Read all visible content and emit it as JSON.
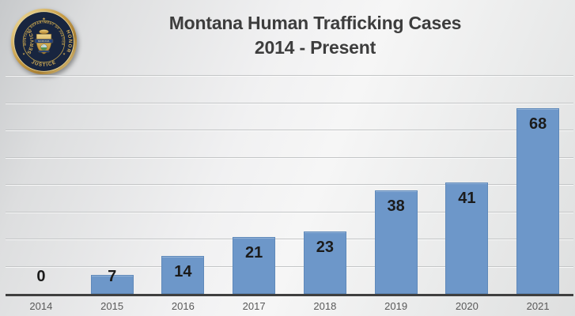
{
  "logo": {
    "ring_text": "MONTANA DEPARTMENT OF JUSTICE",
    "word_left": "SERVICE",
    "word_right": "HONOR",
    "word_bottom": "JUSTICE",
    "badge_banner": "MONTANA",
    "star": "★"
  },
  "title": {
    "line1": "Montana Human Trafficking Cases",
    "line2": "2014 - Present"
  },
  "chart_data": {
    "type": "bar",
    "categories": [
      "2014",
      "2015",
      "2016",
      "2017",
      "2018",
      "2019",
      "2020",
      "2021"
    ],
    "values": [
      0,
      7,
      14,
      21,
      23,
      38,
      41,
      68
    ],
    "title": "Montana Human Trafficking Cases 2014 - Present",
    "xlabel": "",
    "ylabel": "",
    "ylim": [
      0,
      80
    ],
    "grid": true,
    "gridline_step": 10,
    "legend": false,
    "data_labels": "inside-end",
    "bar_color": "#6d97c9",
    "value_label_color": "#1b1b1b",
    "axis_color": "#3f3f3f",
    "gridline_color": "#c3c5c6",
    "tick_label_color": "#595959",
    "title_color": "#3d3d3d"
  }
}
